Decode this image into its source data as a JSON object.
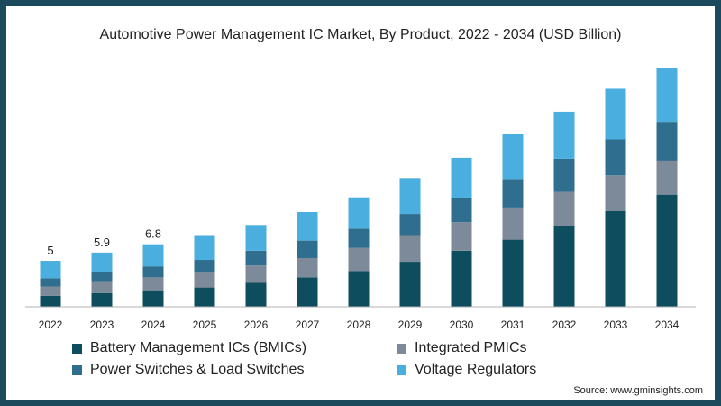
{
  "chart_data": {
    "type": "bar",
    "stacked": true,
    "title": "Automotive Power Management IC Market, By Product, 2022 - 2034 (USD Billion)",
    "xlabel": "",
    "ylabel": "",
    "ylim": [
      0,
      26
    ],
    "grid": false,
    "legend_position": "bottom",
    "categories": [
      "2022",
      "2023",
      "2024",
      "2025",
      "2026",
      "2027",
      "2028",
      "2029",
      "2030",
      "2031",
      "2032",
      "2033",
      "2034"
    ],
    "series": [
      {
        "name": "Battery Management ICs (BMICs)",
        "color": "#0e4d5e",
        "values": [
          1.2,
          1.5,
          1.8,
          2.1,
          2.6,
          3.2,
          3.9,
          4.9,
          6.1,
          7.3,
          8.8,
          10.4,
          12.2
        ]
      },
      {
        "name": "Integrated PMICs",
        "color": "#7d8a99",
        "values": [
          1.0,
          1.2,
          1.4,
          1.6,
          1.9,
          2.1,
          2.5,
          2.8,
          3.1,
          3.5,
          3.7,
          3.9,
          3.7
        ]
      },
      {
        "name": "Power Switches & Load Switches",
        "color": "#2f6e8e",
        "values": [
          0.9,
          1.1,
          1.2,
          1.4,
          1.6,
          1.9,
          2.1,
          2.4,
          2.6,
          3.1,
          3.6,
          3.9,
          4.2
        ]
      },
      {
        "name": "Voltage Regulators",
        "color": "#4aaedf",
        "values": [
          1.9,
          2.1,
          2.4,
          2.6,
          2.8,
          3.1,
          3.4,
          3.9,
          4.4,
          4.9,
          5.1,
          5.5,
          5.9
        ]
      }
    ],
    "data_labels": [
      {
        "category": "2022",
        "text": "5"
      },
      {
        "category": "2023",
        "text": "5.9"
      },
      {
        "category": "2024",
        "text": "6.8"
      }
    ]
  },
  "source_text": "Source: www.gminsights.com"
}
